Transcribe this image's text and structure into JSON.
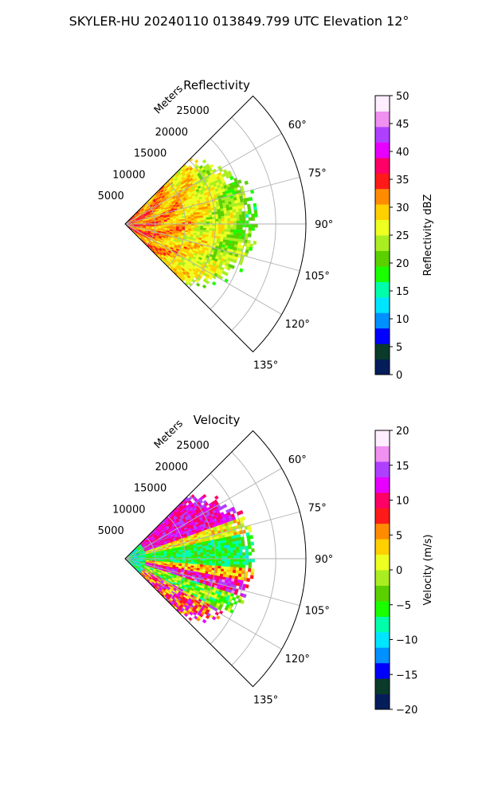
{
  "figure": {
    "suptitle": "SKYLER-HU  20240110  013849.799 UTC Elevation 12°"
  },
  "chart_data": [
    {
      "type": "heatmap",
      "subtype": "polar-sector",
      "title": "Reflectivity",
      "radial_axis_label": "Meters",
      "radial_ticks": [
        "5000",
        "10000",
        "15000",
        "20000",
        "25000"
      ],
      "radial_range": [
        0,
        30000
      ],
      "angle_ticks": [
        "60°",
        "75°",
        "90°",
        "105°",
        "120°",
        "135°"
      ],
      "angle_range_deg": [
        45,
        135
      ],
      "grid": true,
      "colorbar": {
        "label": "Reflectivity dBZ",
        "range": [
          0,
          50
        ],
        "ticks": [
          "0",
          "5",
          "10",
          "15",
          "20",
          "25",
          "30",
          "35",
          "40",
          "45",
          "50"
        ],
        "colormap": [
          "#061d5c",
          "#0a3a2a",
          "#0000ff",
          "#0090ff",
          "#00e5ff",
          "#00ffaa",
          "#1aff00",
          "#5bd000",
          "#aaee22",
          "#eeff22",
          "#ffd000",
          "#ff8c00",
          "#ff1a1a",
          "#ff0066",
          "#e800ff",
          "#b040ff",
          "#f090f0",
          "#ffeeff"
        ]
      },
      "data_pattern": {
        "description": "mostly 30-38 dBZ (red/magenta/yellow) near radar, 18-25 dBZ (green/yellow) at 13-22 km range",
        "inner_dbz": 34,
        "outer_dbz": 20,
        "max_range_m": 22000,
        "color_index_seed": 1
      }
    },
    {
      "type": "heatmap",
      "subtype": "polar-sector",
      "title": "Velocity",
      "radial_axis_label": "Meters",
      "radial_ticks": [
        "5000",
        "10000",
        "15000",
        "20000",
        "25000"
      ],
      "radial_range": [
        0,
        30000
      ],
      "angle_ticks": [
        "60°",
        "75°",
        "90°",
        "105°",
        "120°",
        "135°"
      ],
      "angle_range_deg": [
        45,
        135
      ],
      "grid": true,
      "colorbar": {
        "label": "Velocity (m/s)",
        "range": [
          -20,
          20
        ],
        "ticks": [
          "−20",
          "−15",
          "−10",
          "−5",
          "0",
          "5",
          "10",
          "15",
          "20"
        ],
        "colormap": [
          "#061d5c",
          "#0a3a2a",
          "#0000ff",
          "#0090ff",
          "#00e5ff",
          "#00ffaa",
          "#1aff00",
          "#5bd000",
          "#aaee22",
          "#eeff22",
          "#ffd000",
          "#ff8c00",
          "#ff1a1a",
          "#ff0066",
          "#e800ff",
          "#b040ff",
          "#f090f0",
          "#ffeeff"
        ]
      },
      "data_pattern": {
        "description": "~12 m/s (red/magenta) toward 60-75°, ~-5 m/s (green) around 80-95°, ~+12 m/s band near 100-110°, mixed toward 120°",
        "max_range_m": 22000
      }
    }
  ]
}
